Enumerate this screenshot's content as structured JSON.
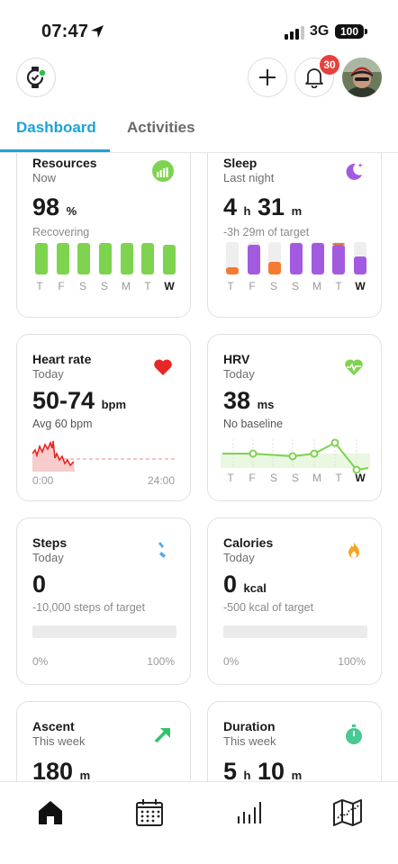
{
  "status": {
    "time": "07:47",
    "network": "3G",
    "battery": "100"
  },
  "header": {
    "notifications_count": "30"
  },
  "tabs": [
    {
      "label": "Dashboard",
      "active": true
    },
    {
      "label": "Activities",
      "active": false
    }
  ],
  "colors": {
    "accent": "#1aa3d9",
    "green": "#7ed34f",
    "purple": "#a25be0",
    "orange": "#f47a30",
    "red": "#e82626",
    "badge": "#e8403c"
  },
  "days": [
    "T",
    "F",
    "S",
    "S",
    "M",
    "T",
    "W"
  ],
  "cards": {
    "resources": {
      "title": "Resources",
      "sub": "Now",
      "value": "98",
      "unit": "%",
      "note": "Recovering",
      "icon": "resources-gauge-icon",
      "levels": [
        0.96,
        0.96,
        0.96,
        0.96,
        0.96,
        0.96,
        0.92
      ]
    },
    "sleep": {
      "title": "Sleep",
      "sub": "Last night",
      "v1": "4",
      "u1": "h",
      "v2": "31",
      "u2": "m",
      "note": "-3h 29m of target",
      "icon": "moon-stars-icon",
      "levels": [
        {
          "sleep": 0.0,
          "short": 0.22
        },
        {
          "sleep": 0.92,
          "short": 0.0
        },
        {
          "sleep": 0.0,
          "short": 0.4
        },
        {
          "sleep": 0.98,
          "short": 0.0
        },
        {
          "sleep": 0.98,
          "short": 0.0
        },
        {
          "sleep": 0.92,
          "short": 0.06
        },
        {
          "sleep": 0.56,
          "short": 0.0
        }
      ]
    },
    "heart_rate": {
      "title": "Heart rate",
      "sub": "Today",
      "value": "50-74",
      "unit": "bpm",
      "note": "Avg 60 bpm",
      "axis_start": "0:00",
      "axis_end": "24:00",
      "icon": "heart-icon"
    },
    "hrv": {
      "title": "HRV",
      "sub": "Today",
      "value": "38",
      "unit": "ms",
      "note": "No baseline",
      "icon": "heart-pulse-icon"
    },
    "steps": {
      "title": "Steps",
      "sub": "Today",
      "value": "0",
      "unit": "",
      "note": "-10,000 steps of target",
      "progress": 0,
      "pct_left": "0%",
      "pct_right": "100%",
      "icon": "footprints-icon"
    },
    "calories": {
      "title": "Calories",
      "sub": "Today",
      "value": "0",
      "unit": "kcal",
      "note": "-500 kcal of target",
      "progress": 0,
      "pct_left": "0%",
      "pct_right": "100%",
      "icon": "flame-icon"
    },
    "ascent": {
      "title": "Ascent",
      "sub": "This week",
      "value": "180",
      "unit": "m",
      "icon": "arrow-up-right-icon"
    },
    "duration": {
      "title": "Duration",
      "sub": "This week",
      "v1": "5",
      "u1": "h",
      "v2": "10",
      "u2": "m",
      "icon": "stopwatch-icon"
    }
  },
  "bottom_nav": [
    "home-icon",
    "calendar-icon",
    "stats-bars-icon",
    "map-icon"
  ]
}
